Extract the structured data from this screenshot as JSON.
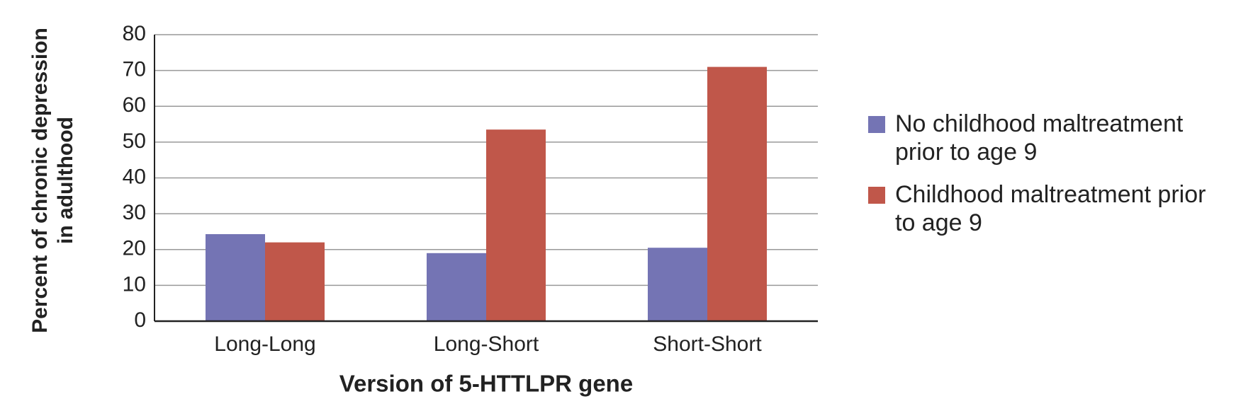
{
  "chart_data": {
    "type": "bar",
    "categories": [
      "Long-Long",
      "Long-Short",
      "Short-Short"
    ],
    "series": [
      {
        "name": "No childhood maltreatment prior to age 9",
        "color": "#7474b4",
        "values": [
          24.3,
          19,
          20.5
        ]
      },
      {
        "name": "Childhood maltreatment prior to age 9",
        "color": "#c0574a",
        "values": [
          22,
          53.5,
          71
        ]
      }
    ],
    "x_label": "Version of 5-HTTLPR gene",
    "y_label": "Percent of chronic depression in adulthood",
    "ylim": [
      0,
      80
    ],
    "yticks": [
      0,
      10,
      20,
      30,
      40,
      50,
      60,
      70,
      80
    ],
    "grid": true
  }
}
